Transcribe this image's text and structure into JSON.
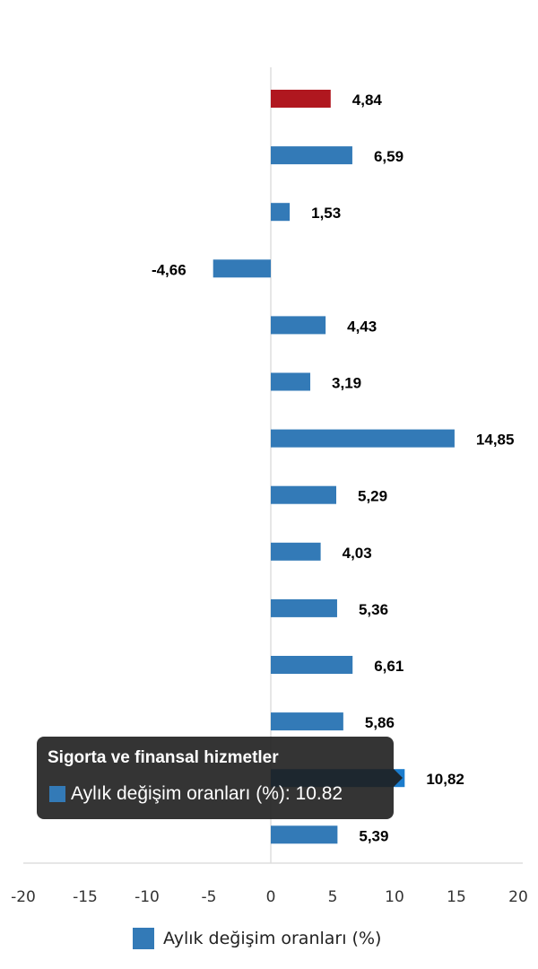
{
  "chart_data": {
    "type": "bar",
    "orientation": "horizontal",
    "values": [
      4.84,
      6.59,
      1.53,
      -4.66,
      4.43,
      3.19,
      14.85,
      5.29,
      4.03,
      5.36,
      6.61,
      5.86,
      10.82,
      5.39
    ],
    "data_labels": [
      "4,84",
      "6,59",
      "1,53",
      "-4,66",
      "4,43",
      "3,19",
      "14,85",
      "5,29",
      "4,03",
      "5,36",
      "6,61",
      "5,86",
      "10,82",
      "5,39"
    ],
    "bar_colors": [
      "#b0171f",
      "#337ab7",
      "#337ab7",
      "#337ab7",
      "#337ab7",
      "#337ab7",
      "#337ab7",
      "#337ab7",
      "#337ab7",
      "#337ab7",
      "#337ab7",
      "#337ab7",
      "#1b7ccc",
      "#337ab7"
    ],
    "xlim": [
      -20,
      20
    ],
    "xticks": [
      "-20",
      "-15",
      "-10",
      "-5",
      "0",
      "5",
      "10",
      "15",
      "20"
    ],
    "grid": false,
    "legend": {
      "position": "bottom",
      "label": "Aylık değişim oranları (%)",
      "color": "#337ab7"
    },
    "highlight_color": "#b0171f",
    "series_color": "#337ab7"
  },
  "tooltip": {
    "title": "Sigorta ve finansal hizmetler",
    "row": "Aylık değişim oranları (%): 10.82"
  }
}
